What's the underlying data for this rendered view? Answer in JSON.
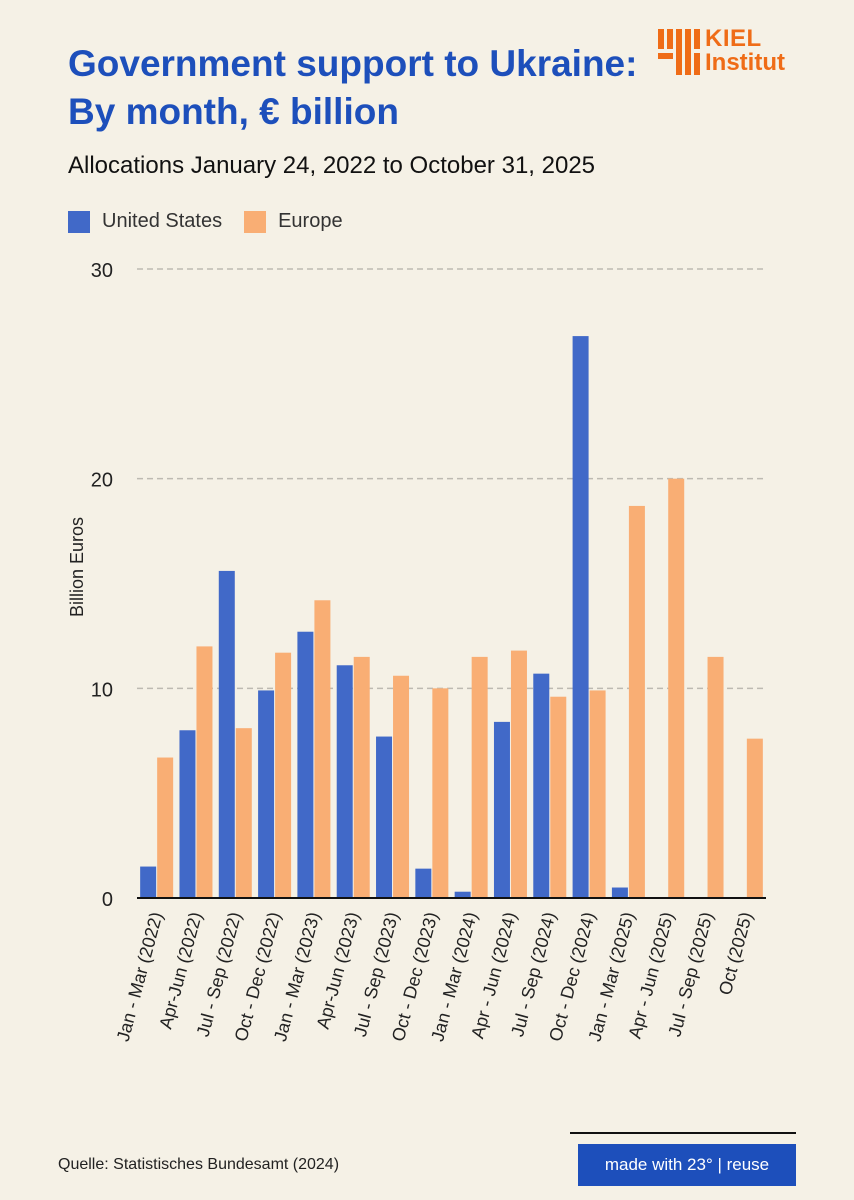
{
  "header": {
    "title": "Government support to Ukraine: By month, € billion",
    "subtitle": "Allocations January 24, 2022 to October 31, 2025"
  },
  "logo": {
    "line1": "KIEL",
    "line2": "Institut",
    "color": "#ef6c17"
  },
  "legend": [
    {
      "label": "United States",
      "color": "#4169c8"
    },
    {
      "label": "Europe",
      "color": "#f9ae74"
    }
  ],
  "footer": {
    "source": "Quelle: Statistisches Bundesamt (2024)",
    "made_with": "made with 23° | reuse"
  },
  "chart_data": {
    "type": "bar",
    "title": "Government support to Ukraine: By month, € billion",
    "subtitle": "Allocations January 24, 2022 to October 31, 2025",
    "xlabel": "",
    "ylabel": "Billion Euros",
    "ylim": [
      0,
      30
    ],
    "yticks": [
      0,
      10,
      20,
      30
    ],
    "grid": true,
    "legend_position": "top-left",
    "categories": [
      "Jan - Mar (2022)",
      "Apr-Jun (2022)",
      "Jul - Sep (2022)",
      "Oct - Dec (2022)",
      "Jan - Mar (2023)",
      "Apr-Jun (2023)",
      "Jul - Sep (2023)",
      "Oct - Dec (2023)",
      "Jan - Mar (2024)",
      "Apr - Jun (2024)",
      "Jul - Sep (2024)",
      "Oct - Dec (2024)",
      "Jan - Mar (2025)",
      "Apr - Jun (2025)",
      "Jul - Sep (2025)",
      "Oct (2025)"
    ],
    "series": [
      {
        "name": "United States",
        "color": "#4169c8",
        "values": [
          1.5,
          8.0,
          15.6,
          9.9,
          12.7,
          11.1,
          7.7,
          1.4,
          0.3,
          8.4,
          10.7,
          26.8,
          0.5,
          0,
          0,
          0
        ]
      },
      {
        "name": "Europe",
        "color": "#f9ae74",
        "values": [
          6.7,
          12.0,
          8.1,
          11.7,
          14.2,
          11.5,
          10.6,
          10.0,
          11.5,
          11.8,
          9.6,
          9.9,
          18.7,
          20.0,
          11.5,
          7.6
        ]
      }
    ]
  }
}
